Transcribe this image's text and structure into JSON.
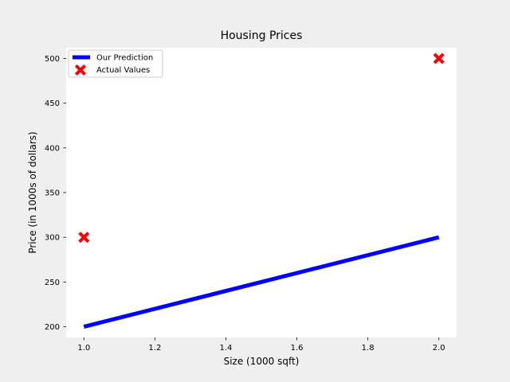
{
  "chart_data": {
    "type": "line",
    "title": "Housing Prices",
    "xlabel": "Size (1000 sqft)",
    "ylabel": "Price (in 1000s of dollars)",
    "xlim": [
      0.95,
      2.05
    ],
    "ylim": [
      188,
      512
    ],
    "grid": false,
    "legend_position": "top-left",
    "x_ticks": [
      1.0,
      1.2,
      1.4,
      1.6,
      1.8,
      2.0
    ],
    "x_tick_labels": [
      "1.0",
      "1.2",
      "1.4",
      "1.6",
      "1.8",
      "2.0"
    ],
    "y_ticks": [
      200,
      250,
      300,
      350,
      400,
      450,
      500
    ],
    "y_tick_labels": [
      "200",
      "250",
      "300",
      "350",
      "400",
      "450",
      "500"
    ],
    "series": [
      {
        "name": "Our Prediction",
        "kind": "line",
        "color": "#0000ff",
        "points": [
          {
            "x": 1.0,
            "y": 200
          },
          {
            "x": 2.0,
            "y": 300
          }
        ]
      },
      {
        "name": "Actual Values",
        "kind": "scatter",
        "marker": "x",
        "color": "#ff0000",
        "points": [
          {
            "x": 1.0,
            "y": 300
          },
          {
            "x": 2.0,
            "y": 500
          }
        ]
      }
    ]
  }
}
